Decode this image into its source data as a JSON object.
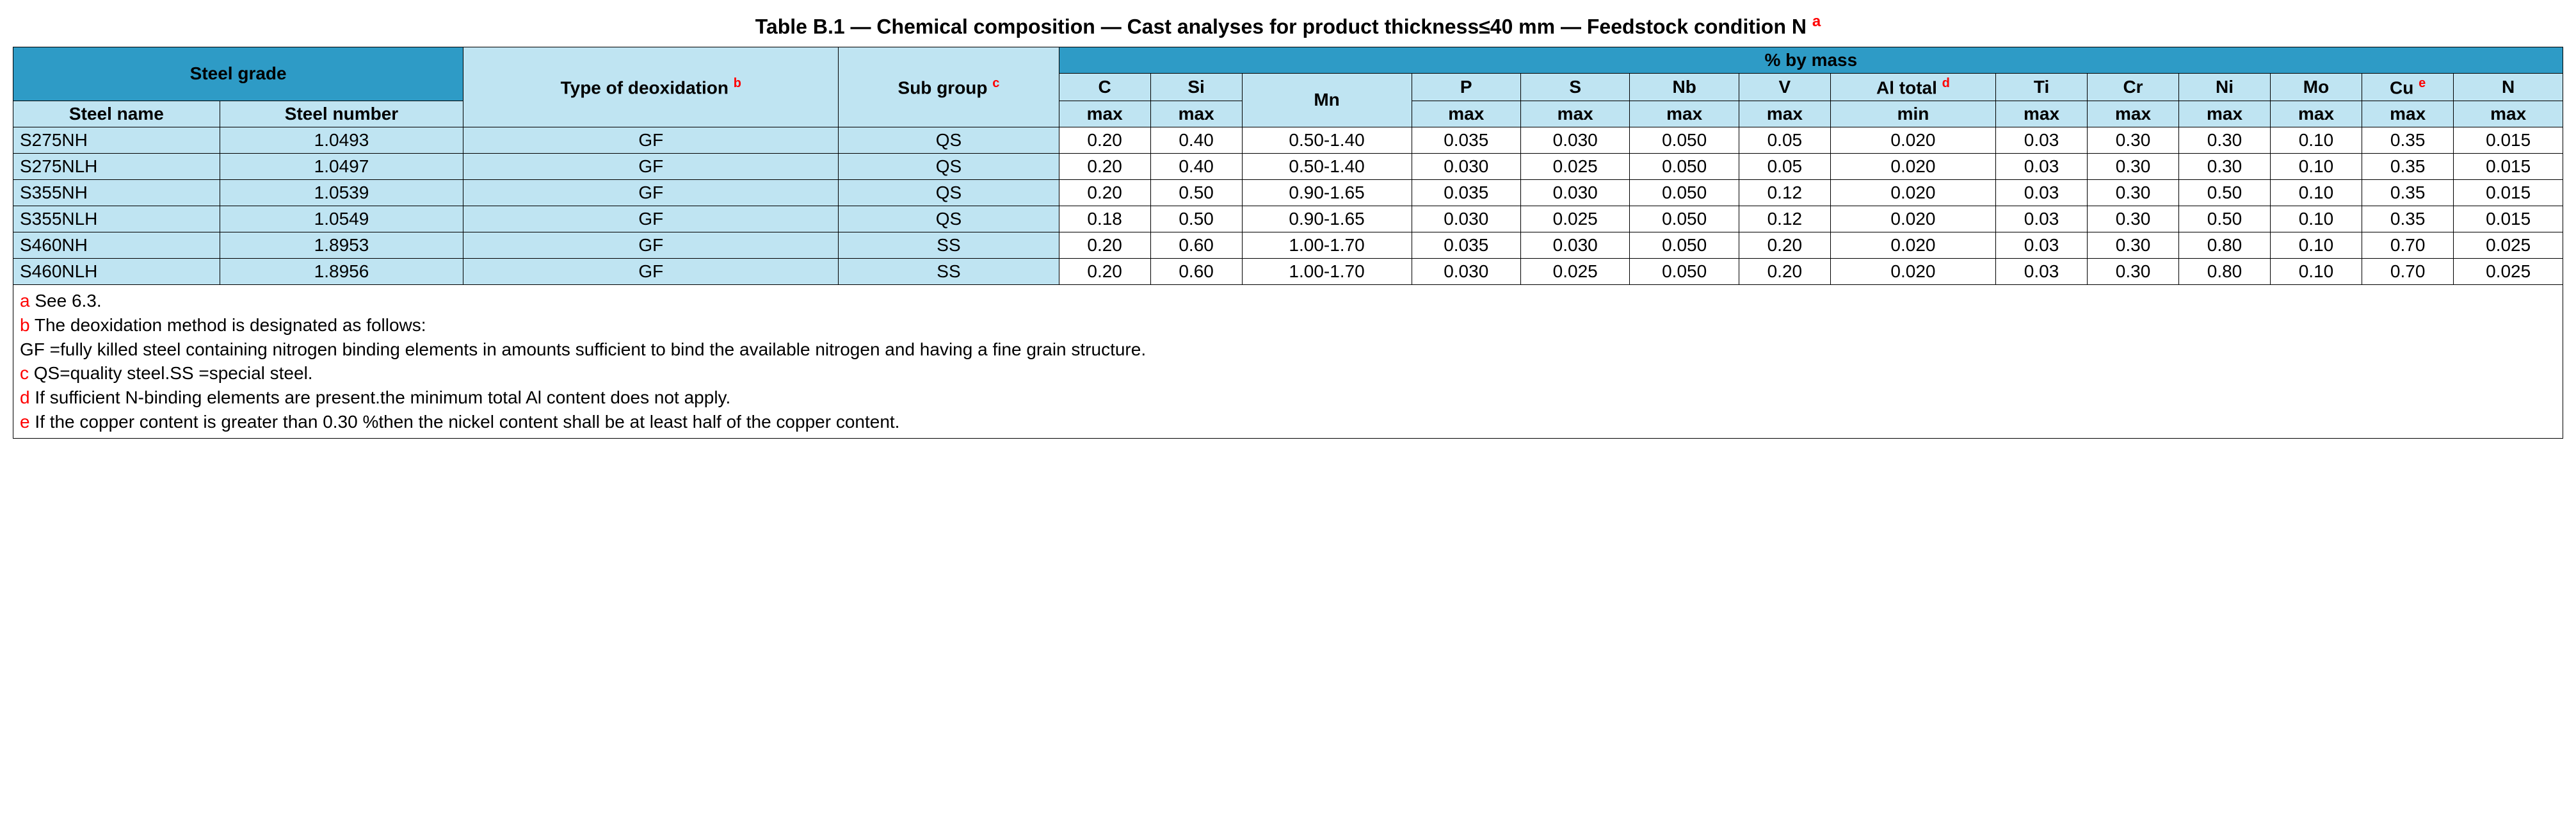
{
  "title": {
    "prefix": "Table B.1 — Chemical composition — Cast analyses for product thickness≤40 mm — Feedstock condition N",
    "sup": "a"
  },
  "colors": {
    "header_blue": "#2e9bc6",
    "header_light": "#bfe4f2",
    "border": "#000000",
    "sup_red": "#ff0000",
    "bg": "#ffffff"
  },
  "headers": {
    "steel_grade": "Steel grade",
    "type_of_deox": "Type of deoxidation",
    "type_of_deox_sup": "b",
    "sub_group": "Sub group",
    "sub_group_sup": "c",
    "pct_by_mass": "% by mass",
    "steel_name": "Steel name",
    "steel_number": "Steel number",
    "C": "C",
    "Si": "Si",
    "Mn": "Mn",
    "P": "P",
    "S": "S",
    "Nb": "Nb",
    "V": "V",
    "Al_total": "Al total",
    "Al_total_sup": "d",
    "Ti": "Ti",
    "Cr": "Cr",
    "Ni": "Ni",
    "Mo": "Mo",
    "Cu": "Cu",
    "Cu_sup": "e",
    "N": "N",
    "max": "max",
    "min": "min"
  },
  "rows": [
    {
      "name": "S275NH",
      "number": "1.0493",
      "deox": "GF",
      "subgroup": "QS",
      "C": "0.20",
      "Si": "0.40",
      "Mn": "0.50-1.40",
      "P": "0.035",
      "S": "0.030",
      "Nb": "0.050",
      "V": "0.05",
      "Al": "0.020",
      "Ti": "0.03",
      "Cr": "0.30",
      "Ni": "0.30",
      "Mo": "0.10",
      "Cu": "0.35",
      "N": "0.015"
    },
    {
      "name": "S275NLH",
      "number": "1.0497",
      "deox": "GF",
      "subgroup": "QS",
      "C": "0.20",
      "Si": "0.40",
      "Mn": "0.50-1.40",
      "P": "0.030",
      "S": "0.025",
      "Nb": "0.050",
      "V": "0.05",
      "Al": "0.020",
      "Ti": "0.03",
      "Cr": "0.30",
      "Ni": "0.30",
      "Mo": "0.10",
      "Cu": "0.35",
      "N": "0.015"
    },
    {
      "name": "S355NH",
      "number": "1.0539",
      "deox": "GF",
      "subgroup": "QS",
      "C": "0.20",
      "Si": "0.50",
      "Mn": "0.90-1.65",
      "P": "0.035",
      "S": "0.030",
      "Nb": "0.050",
      "V": "0.12",
      "Al": "0.020",
      "Ti": "0.03",
      "Cr": "0.30",
      "Ni": "0.50",
      "Mo": "0.10",
      "Cu": "0.35",
      "N": "0.015"
    },
    {
      "name": "S355NLH",
      "number": "1.0549",
      "deox": "GF",
      "subgroup": "QS",
      "C": "0.18",
      "Si": "0.50",
      "Mn": "0.90-1.65",
      "P": "0.030",
      "S": "0.025",
      "Nb": "0.050",
      "V": "0.12",
      "Al": "0.020",
      "Ti": "0.03",
      "Cr": "0.30",
      "Ni": "0.50",
      "Mo": "0.10",
      "Cu": "0.35",
      "N": "0.015"
    },
    {
      "name": "S460NH",
      "number": "1.8953",
      "deox": "GF",
      "subgroup": "SS",
      "C": "0.20",
      "Si": "0.60",
      "Mn": "1.00-1.70",
      "P": "0.035",
      "S": "0.030",
      "Nb": "0.050",
      "V": "0.20",
      "Al": "0.020",
      "Ti": "0.03",
      "Cr": "0.30",
      "Ni": "0.80",
      "Mo": "0.10",
      "Cu": "0.70",
      "N": "0.025"
    },
    {
      "name": "S460NLH",
      "number": "1.8956",
      "deox": "GF",
      "subgroup": "SS",
      "C": "0.20",
      "Si": "0.60",
      "Mn": "1.00-1.70",
      "P": "0.030",
      "S": "0.025",
      "Nb": "0.050",
      "V": "0.20",
      "Al": "0.020",
      "Ti": "0.03",
      "Cr": "0.30",
      "Ni": "0.80",
      "Mo": "0.10",
      "Cu": "0.70",
      "N": "0.025"
    }
  ],
  "footnotes": {
    "a_key": "a",
    "a_text": " See 6.3.",
    "b_key": "b",
    "b_text": " The deoxidation method is designated as follows:",
    "gf_text": "GF =fully killed steel containing nitrogen binding elements in amounts sufficient to bind the available nitrogen and having a fine grain structure.",
    "c_key": "c",
    "c_text": " QS=quality steel.SS =special steel.",
    "d_key": "d",
    "d_text": " If sufficient N-binding elements are present.the minimum total Al content does not apply.",
    "e_key": "e",
    "e_text": " If the copper content is greater than 0.30 %then the nickel content shall be at least half of the copper content."
  }
}
